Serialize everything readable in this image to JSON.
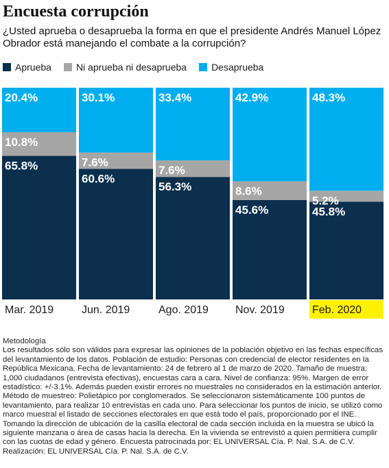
{
  "title": "Encuesta corrupción",
  "subtitle": "¿Usted aprueba o desaprueba la forma en que el presidente Andrés Manuel López Obrador está manejando el combate a la corrupción?",
  "colors": {
    "aprueba": "#0b2f4d",
    "ni": "#a6a6a6",
    "desaprueba": "#00aeef",
    "highlight": "#fff200"
  },
  "chart_data": {
    "type": "bar",
    "stacked": true,
    "categories": [
      "Mar. 2019",
      "Jun. 2019",
      "Ago. 2019",
      "Nov. 2019",
      "Feb. 2020"
    ],
    "highlight_category": "Feb. 2020",
    "ylim": [
      0,
      100
    ],
    "legend_position": "top",
    "series": [
      {
        "name": "Aprueba",
        "values": [
          65.8,
          60.6,
          56.3,
          45.6,
          45.8
        ],
        "labels": [
          "65.8%",
          "60.6%",
          "56.3%",
          "45.6%",
          "45.8%"
        ]
      },
      {
        "name": "Ni aprueba ni desaprueba",
        "values": [
          10.8,
          7.6,
          7.6,
          8.6,
          5.2
        ],
        "labels": [
          "10.8%",
          "7.6%",
          "7.6%",
          "8.6%",
          "5.2%"
        ]
      },
      {
        "name": "Desaprueba",
        "values": [
          20.4,
          30.1,
          33.4,
          42.9,
          48.3
        ],
        "labels": [
          "20.4%",
          "30.1%",
          "33.4%",
          "42.9%",
          "48.3%"
        ]
      }
    ]
  },
  "methodology": {
    "title": "Metodología",
    "text": "Los resultados sólo son válidos para expresar las opiniones de la población objetivo en las fechas específicas del levantamiento de los datos. Población de estudio: Personas con credencial de elector residentes en la República Mexicana. Fecha de levantamiento: 24 de febrero al 1 de marzo de 2020. Tamaño de muestra: 1,000 ciudadanos (entrevista efectivas), encuestas cara a cara. Nivel de confianza: 95%. Margen de error estadístico: +/-3.1%. Además pueden existir errores no muestrales no considerados en la estimación anterior. Método de muestreo: Polietápico por conglomerados. Se seleccionaron sistemáticamente 100 puntos de levantamiento, para realizar 10 entrevistas en cada uno. Para seleccionar los puntos de inicio, se utilizó como marco muestral el listado de secciones electorales en que está todo el país, proporcionado por el INE. Tomando la dirección de ubicación de la casilla electoral de cada sección incluida en la muestra se ubicó la siguiente manzana o área de casas hacia la derecha. En la vivienda se entrevistó a quien permitiera cumplir con las cuotas de edad y género. Encuesta patrocinada por: EL UNIVERSAL Cía. P. Nal. S.A. de C.V.",
    "credit": "Realización: EL UNIVERSAL Cía. P. Nal. S.A. de C.V."
  }
}
